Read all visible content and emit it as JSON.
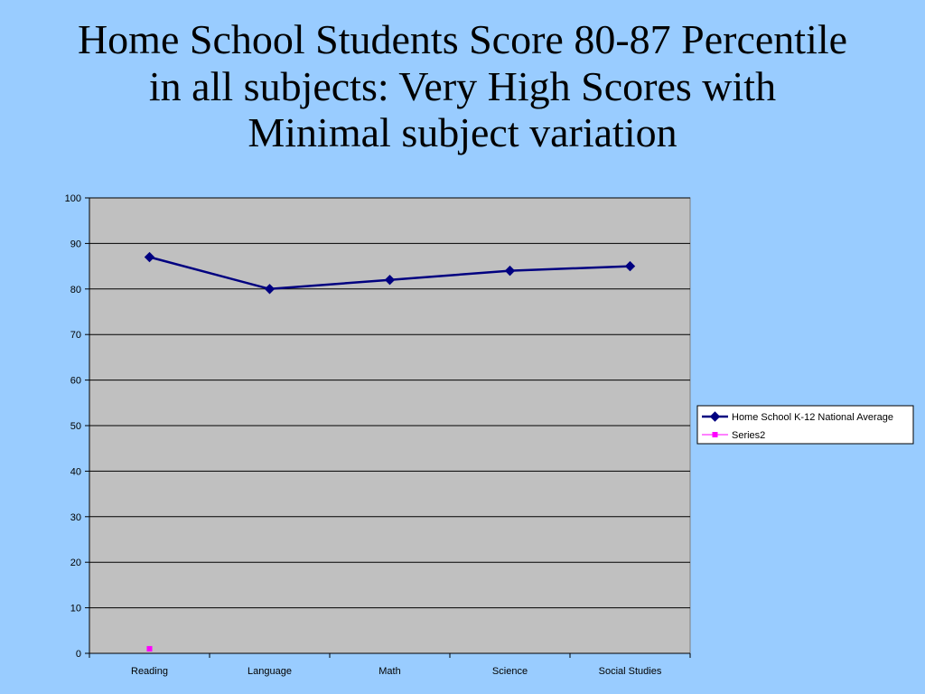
{
  "slide": {
    "title_lines": [
      "Home School Students Score 80-87 Percentile",
      "in all subjects: Very High Scores with",
      "Minimal subject variation"
    ]
  },
  "chart_data": {
    "type": "line",
    "title": "",
    "xlabel": "",
    "ylabel": "",
    "categories": [
      "Reading",
      "Language",
      "Math",
      "Science",
      "Social Studies"
    ],
    "ylim": [
      0,
      100
    ],
    "yticks": [
      0,
      10,
      20,
      30,
      40,
      50,
      60,
      70,
      80,
      90,
      100
    ],
    "grid": true,
    "legend_position": "right",
    "plot_background": "#c0c0c0",
    "series": [
      {
        "name": "Home School K-12 National Average",
        "values": [
          87,
          80,
          82,
          84,
          85
        ],
        "color": "#000080",
        "marker": "diamond"
      },
      {
        "name": "Series2",
        "values": [
          1,
          null,
          null,
          null,
          null
        ],
        "color": "#ff00ff",
        "marker": "square"
      }
    ]
  }
}
